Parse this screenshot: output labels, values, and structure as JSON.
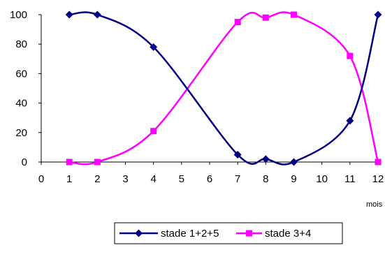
{
  "chart_data": {
    "type": "line",
    "x_ticks": [
      "0",
      "1",
      "2",
      "3",
      "4",
      "5",
      "6",
      "7",
      "8",
      "9",
      "10",
      "11",
      "12"
    ],
    "y_ticks": [
      "0",
      "20",
      "40",
      "60",
      "80",
      "100"
    ],
    "xlabel": "mois",
    "xlim": [
      0,
      12
    ],
    "ylim": [
      0,
      100
    ],
    "grid": false,
    "legend_position": "bottom",
    "series": [
      {
        "name": "stade 1+2+5",
        "color": "#000080",
        "marker": "diamond",
        "x": [
          1,
          2,
          4,
          7,
          8,
          9,
          11,
          12
        ],
        "y": [
          100,
          100,
          78,
          5,
          2,
          0,
          28,
          100
        ]
      },
      {
        "name": "stade 3+4",
        "color": "#FF00FF",
        "marker": "square",
        "x": [
          1,
          2,
          4,
          7,
          8,
          9,
          11,
          12
        ],
        "y": [
          0,
          0,
          21,
          95,
          98,
          100,
          72,
          0
        ]
      }
    ]
  }
}
